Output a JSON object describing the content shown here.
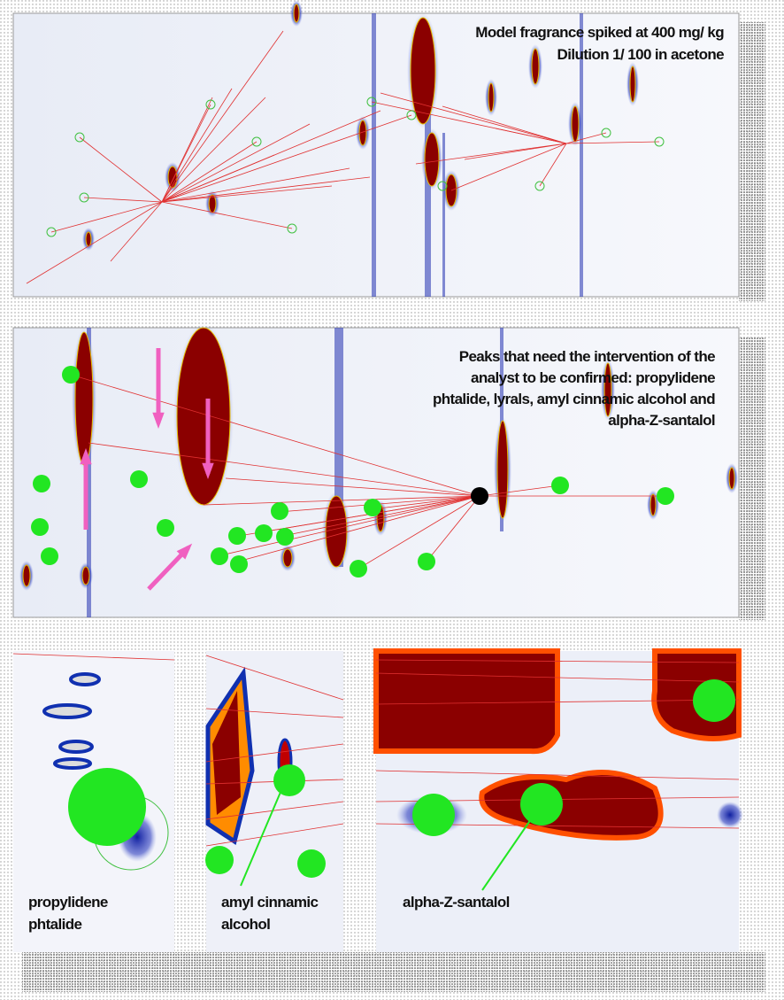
{
  "panels": [
    {
      "caption": [
        "Model fragrance spiked at 400 mg/ kg",
        "Dilution 1/ 100 in acetone"
      ]
    },
    {
      "caption": [
        "Peaks that need the intervention of the",
        "analyst to be confirmed:  propylidene",
        "phtalide, lyrals, amyl cinnamic alcohol and",
        "alpha-Z-santalol"
      ]
    }
  ],
  "insets": [
    {
      "label": [
        "propylidene",
        "phtalide"
      ]
    },
    {
      "label": [
        "amyl cinnamic",
        "alcohol"
      ]
    },
    {
      "label": [
        "alpha-Z-santalol"
      ]
    }
  ]
}
